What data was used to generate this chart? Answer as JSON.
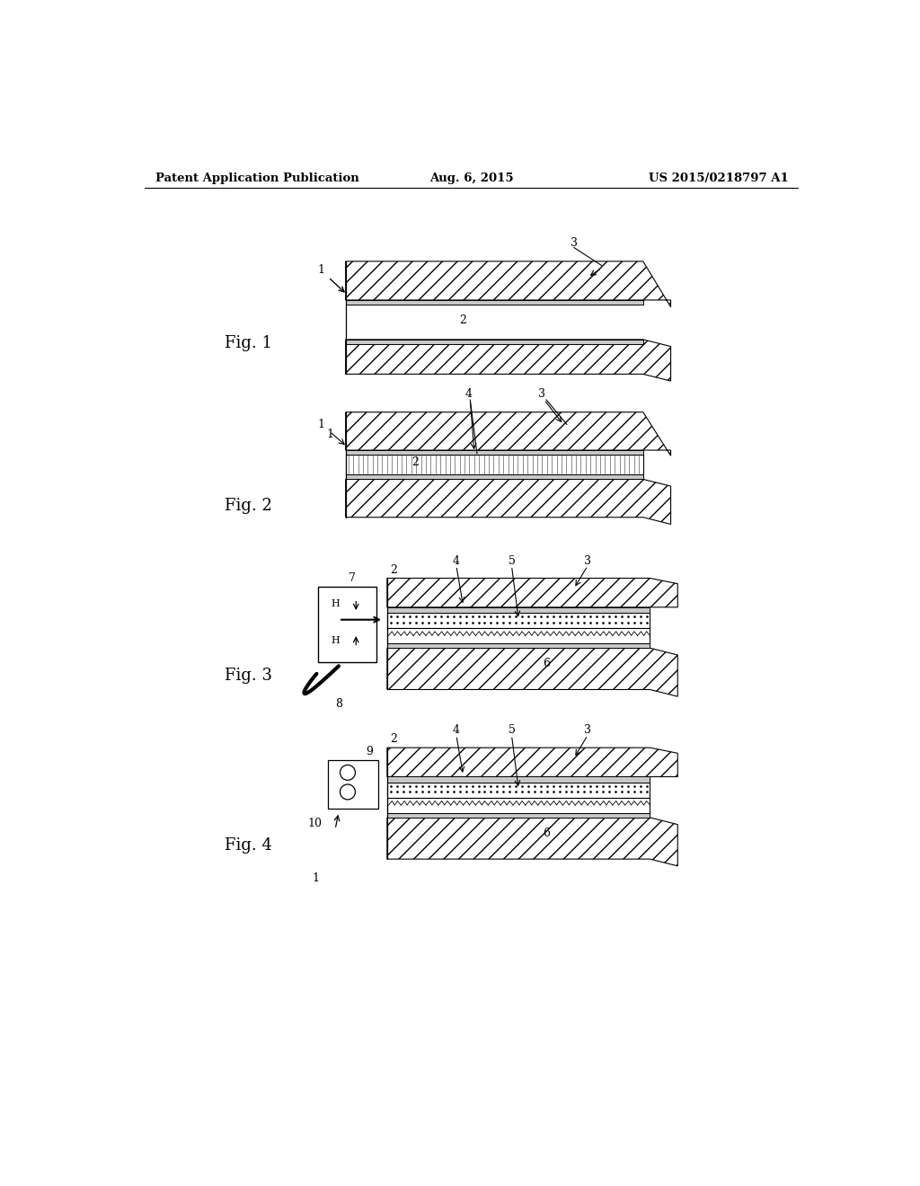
{
  "bg_color": "#ffffff",
  "header_left": "Patent Application Publication",
  "header_center": "Aug. 6, 2015",
  "header_right": "US 2015/0218797 A1",
  "header_fontsize": 9.5,
  "fig_label_fontsize": 13,
  "annotation_fontsize": 9
}
